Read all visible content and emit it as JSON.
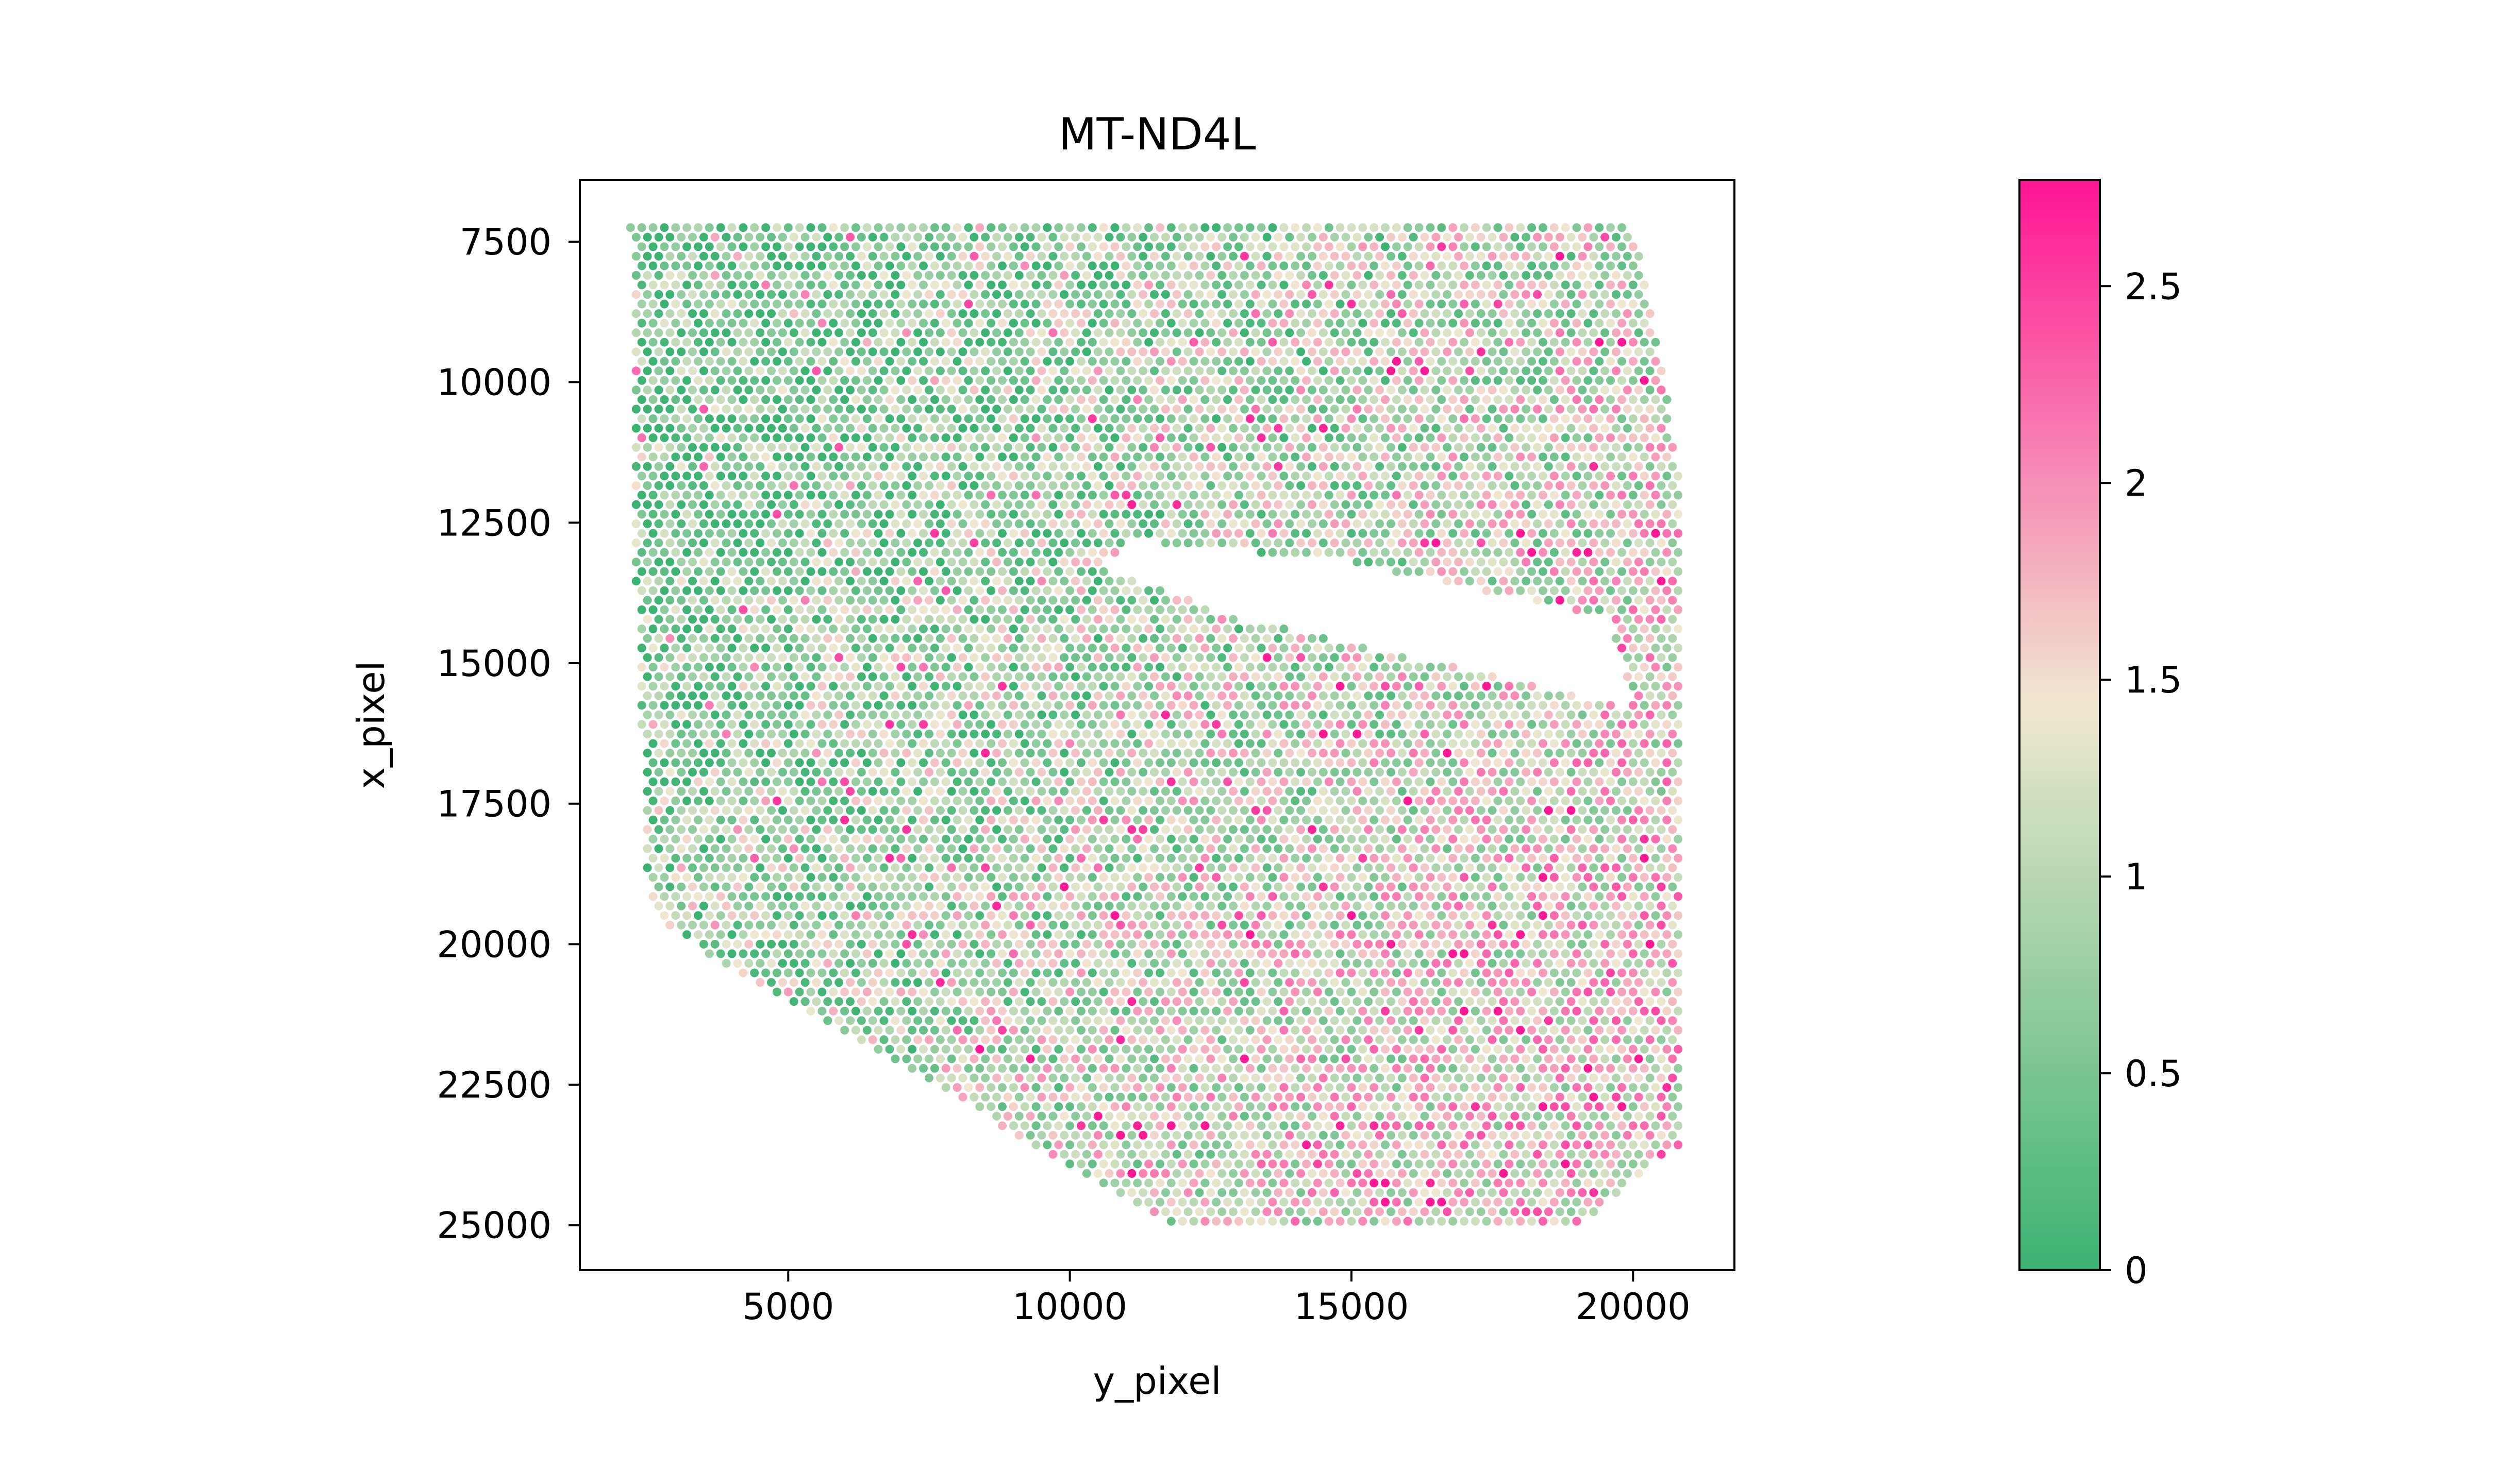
{
  "chart_data": {
    "type": "scatter",
    "title": "MT-ND4L",
    "xlabel": "y_pixel",
    "ylabel": "x_pixel",
    "xlim": [
      1300,
      21800
    ],
    "ylim": [
      25800,
      6400
    ],
    "y_inverted": true,
    "x_ticks": [
      "5000",
      "10000",
      "15000",
      "20000"
    ],
    "x_tick_values": [
      5000,
      10000,
      15000,
      20000
    ],
    "y_ticks": [
      "7500",
      "10000",
      "12500",
      "15000",
      "17500",
      "20000",
      "22500",
      "25000"
    ],
    "y_tick_values": [
      7500,
      10000,
      12500,
      15000,
      17500,
      20000,
      22500,
      25000
    ],
    "grid": false,
    "point_count_estimate": 4000,
    "point_color_range": [
      0,
      2.75
    ],
    "tissue_outline_points": [
      [
        2200,
        7250
      ],
      [
        20000,
        7250
      ],
      [
        20500,
        9500
      ],
      [
        20900,
        12200
      ],
      [
        20900,
        23500
      ],
      [
        19000,
        25000
      ],
      [
        11800,
        25000
      ],
      [
        2800,
        19700
      ],
      [
        2500,
        18900
      ],
      [
        2300,
        13700
      ]
    ],
    "gap_outline_points": [
      [
        10600,
        13300
      ],
      [
        13000,
        14200
      ],
      [
        20000,
        15800
      ],
      [
        19600,
        14200
      ],
      [
        15000,
        13200
      ],
      [
        11000,
        12800
      ]
    ],
    "colorbar": {
      "ticks": [
        "0",
        "0.5",
        "1",
        "1.5",
        "2",
        "2.5"
      ],
      "tick_values": [
        0,
        0.5,
        1,
        1.5,
        2,
        2.5
      ],
      "min": 0,
      "max": 2.77,
      "colors": [
        "#3cb371",
        "#f0e8d0",
        "#ff1493"
      ]
    }
  }
}
